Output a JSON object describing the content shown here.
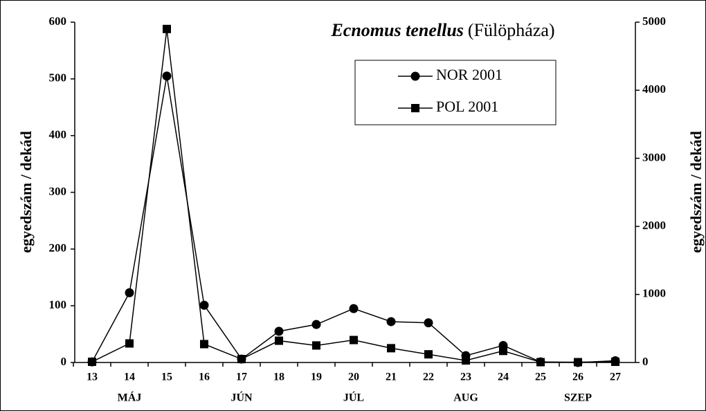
{
  "chart_data": {
    "type": "line",
    "title": "Ecnomus tenellus",
    "subtitle": "(Fülöpháza)",
    "y_label": "egyedszám / dekád",
    "y2_label": "egyedszám / dekád",
    "categories": [
      "13",
      "14",
      "15",
      "16",
      "17",
      "18",
      "19",
      "20",
      "21",
      "22",
      "23",
      "24",
      "25",
      "26",
      "27"
    ],
    "month_labels": [
      "MÁJ",
      "JÚN",
      "JÚL",
      "AUG",
      "SZEP"
    ],
    "series": [
      {
        "name": "NOR 2001",
        "color": "#000000",
        "marker": "circle",
        "values": [
          1,
          123,
          505,
          101,
          6,
          55,
          67,
          95,
          72,
          70,
          12,
          30,
          1,
          0,
          3
        ]
      },
      {
        "name": "POL 2001",
        "color": "#000000",
        "marker": "square",
        "axis": "y2",
        "values": [
          10,
          280,
          4900,
          270,
          50,
          320,
          250,
          330,
          210,
          120,
          30,
          170,
          5,
          5,
          10
        ]
      }
    ],
    "ylim": [
      0,
      600
    ],
    "yticks": [
      0,
      100,
      200,
      300,
      400,
      500,
      600
    ],
    "y2lim": [
      0,
      5000
    ],
    "y2ticks": [
      0,
      1000,
      2000,
      3000,
      4000,
      5000
    ],
    "legend": "top-right"
  }
}
